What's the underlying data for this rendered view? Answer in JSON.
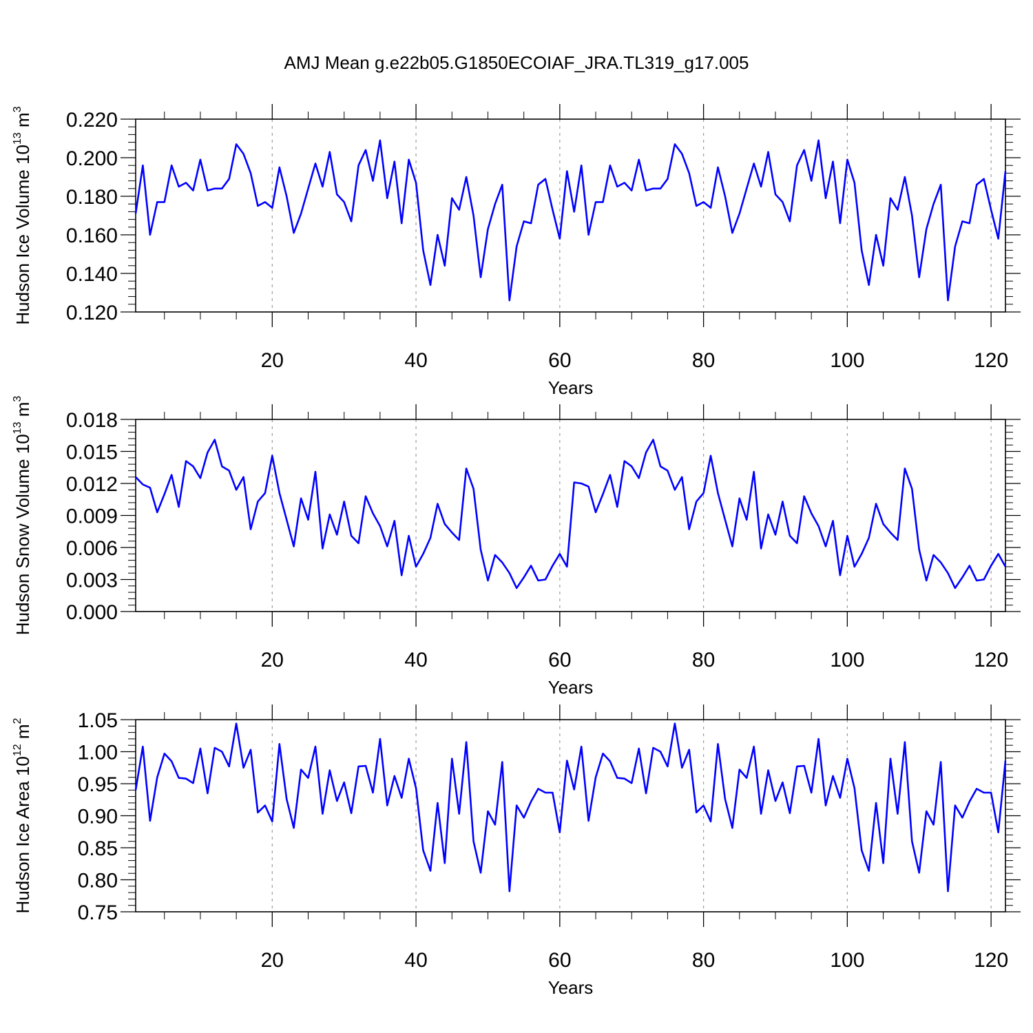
{
  "figure": {
    "title": "AMJ Mean g.e22b05.G1850ECOIAF_JRA.TL319_g17.005"
  },
  "chart_data": [
    {
      "type": "line",
      "title": "AMJ Mean g.e22b05.G1850ECOIAF_JRA.TL319_g17.005",
      "xlabel": "Years",
      "ylabel_prefix": "Hudson Ice Volume 10",
      "ylabel_exp": "13",
      "ylabel_unit": " m",
      "ylabel_unit_exp": "3",
      "xlim": [
        1,
        122
      ],
      "ylim": [
        0.12,
        0.22
      ],
      "xticks": [
        20,
        40,
        60,
        80,
        100,
        120
      ],
      "xtick_labels": [
        "20",
        "40",
        "60",
        "80",
        "100",
        "120"
      ],
      "yticks": [
        0.12,
        0.14,
        0.16,
        0.18,
        0.2,
        0.22
      ],
      "ytick_labels": [
        "0.120",
        "0.140",
        "0.160",
        "0.180",
        "0.200",
        "0.220"
      ],
      "grid": "vertical-dashed",
      "series": [
        {
          "name": "ice volume",
          "color": "#0000ff",
          "x_start": 1,
          "values": [
            0.171,
            0.196,
            0.16,
            0.177,
            0.177,
            0.196,
            0.185,
            0.187,
            0.183,
            0.199,
            0.183,
            0.184,
            0.184,
            0.189,
            0.207,
            0.202,
            0.192,
            0.175,
            0.177,
            0.174,
            0.195,
            0.18,
            0.161,
            0.171,
            0.184,
            0.197,
            0.185,
            0.203,
            0.181,
            0.177,
            0.167,
            0.196,
            0.204,
            0.188,
            0.209,
            0.179,
            0.198,
            0.166,
            0.199,
            0.187,
            0.152,
            0.134,
            0.16,
            0.144,
            0.179,
            0.173,
            0.19,
            0.17,
            0.138,
            0.163,
            0.176,
            0.186,
            0.126,
            0.154,
            0.167,
            0.166,
            0.186,
            0.189,
            0.173,
            0.158,
            0.193,
            0.172,
            0.196,
            0.16,
            0.177,
            0.177,
            0.196,
            0.185,
            0.187,
            0.183,
            0.199,
            0.183,
            0.184,
            0.184,
            0.189,
            0.207,
            0.202,
            0.192,
            0.175,
            0.177,
            0.174,
            0.195,
            0.18,
            0.161,
            0.171,
            0.184,
            0.197,
            0.185,
            0.203,
            0.181,
            0.177,
            0.167,
            0.196,
            0.204,
            0.188,
            0.209,
            0.179,
            0.198,
            0.166,
            0.199,
            0.187,
            0.152,
            0.134,
            0.16,
            0.144,
            0.179,
            0.173,
            0.19,
            0.17,
            0.138,
            0.163,
            0.176,
            0.186,
            0.126,
            0.154,
            0.167,
            0.166,
            0.186,
            0.189,
            0.173,
            0.158,
            0.193
          ]
        }
      ]
    },
    {
      "type": "line",
      "xlabel": "Years",
      "ylabel_prefix": "Hudson Snow Volume 10",
      "ylabel_exp": "13",
      "ylabel_unit": " m",
      "ylabel_unit_exp": "3",
      "xlim": [
        1,
        122
      ],
      "ylim": [
        0.0,
        0.018
      ],
      "xticks": [
        20,
        40,
        60,
        80,
        100,
        120
      ],
      "xtick_labels": [
        "20",
        "40",
        "60",
        "80",
        "100",
        "120"
      ],
      "yticks": [
        0.0,
        0.003,
        0.006,
        0.009,
        0.012,
        0.015,
        0.018
      ],
      "ytick_labels": [
        "0.000",
        "0.003",
        "0.006",
        "0.009",
        "0.012",
        "0.015",
        "0.018"
      ],
      "grid": "vertical-dashed",
      "series": [
        {
          "name": "snow volume",
          "color": "#0000ff",
          "x_start": 1,
          "values": [
            0.0126,
            0.0119,
            0.0116,
            0.0093,
            0.011,
            0.0128,
            0.0098,
            0.0141,
            0.0136,
            0.0125,
            0.0149,
            0.0161,
            0.0136,
            0.0132,
            0.0114,
            0.0126,
            0.0077,
            0.0103,
            0.0111,
            0.0146,
            0.0111,
            0.0086,
            0.0061,
            0.0106,
            0.0086,
            0.0131,
            0.0059,
            0.0091,
            0.0072,
            0.0103,
            0.0071,
            0.0064,
            0.0108,
            0.0092,
            0.008,
            0.0061,
            0.0085,
            0.0034,
            0.0071,
            0.0042,
            0.0054,
            0.0069,
            0.0101,
            0.0082,
            0.0074,
            0.0067,
            0.0134,
            0.0115,
            0.0058,
            0.0029,
            0.0053,
            0.0046,
            0.0036,
            0.0022,
            0.0032,
            0.0043,
            0.0029,
            0.003,
            0.0043,
            0.0054,
            0.0042,
            0.0121,
            0.012,
            0.0117,
            0.0093,
            0.011,
            0.0128,
            0.0098,
            0.0141,
            0.0136,
            0.0125,
            0.0149,
            0.0161,
            0.0136,
            0.0132,
            0.0114,
            0.0126,
            0.0077,
            0.0103,
            0.0111,
            0.0146,
            0.0111,
            0.0086,
            0.0061,
            0.0106,
            0.0086,
            0.0131,
            0.0059,
            0.0091,
            0.0072,
            0.0103,
            0.0071,
            0.0064,
            0.0108,
            0.0092,
            0.008,
            0.0061,
            0.0085,
            0.0034,
            0.0071,
            0.0042,
            0.0054,
            0.0069,
            0.0101,
            0.0082,
            0.0074,
            0.0067,
            0.0134,
            0.0115,
            0.0058,
            0.0029,
            0.0053,
            0.0046,
            0.0036,
            0.0022,
            0.0032,
            0.0043,
            0.0029,
            0.003,
            0.0043,
            0.0054,
            0.0042
          ]
        }
      ]
    },
    {
      "type": "line",
      "xlabel": "Years",
      "ylabel_prefix": "Hudson Ice Area 10",
      "ylabel_exp": "12",
      "ylabel_unit": " m",
      "ylabel_unit_exp": "2",
      "xlim": [
        1,
        122
      ],
      "ylim": [
        0.75,
        1.05
      ],
      "xticks": [
        20,
        40,
        60,
        80,
        100,
        120
      ],
      "xtick_labels": [
        "20",
        "40",
        "60",
        "80",
        "100",
        "120"
      ],
      "yticks": [
        0.75,
        0.8,
        0.85,
        0.9,
        0.95,
        1.0,
        1.05
      ],
      "ytick_labels": [
        "0.75",
        "0.80",
        "0.85",
        "0.90",
        "0.95",
        "1.00",
        "1.05"
      ],
      "grid": "vertical-dashed",
      "series": [
        {
          "name": "ice area",
          "color": "#0000ff",
          "x_start": 1,
          "values": [
            0.94,
            1.008,
            0.892,
            0.96,
            0.997,
            0.985,
            0.959,
            0.958,
            0.951,
            1.005,
            0.935,
            1.006,
            1.0,
            0.977,
            1.044,
            0.975,
            1.003,
            0.905,
            0.916,
            0.891,
            1.012,
            0.926,
            0.881,
            0.972,
            0.959,
            1.008,
            0.903,
            0.971,
            0.923,
            0.952,
            0.904,
            0.977,
            0.978,
            0.936,
            1.02,
            0.916,
            0.962,
            0.928,
            0.989,
            0.943,
            0.846,
            0.814,
            0.92,
            0.826,
            0.989,
            0.903,
            1.015,
            0.86,
            0.811,
            0.907,
            0.886,
            0.984,
            0.782,
            0.916,
            0.897,
            0.922,
            0.942,
            0.936,
            0.936,
            0.874,
            0.986,
            0.941,
            1.008,
            0.892,
            0.96,
            0.997,
            0.985,
            0.959,
            0.958,
            0.951,
            1.005,
            0.935,
            1.006,
            1.0,
            0.977,
            1.044,
            0.975,
            1.003,
            0.905,
            0.916,
            0.891,
            1.012,
            0.926,
            0.881,
            0.972,
            0.959,
            1.008,
            0.903,
            0.971,
            0.923,
            0.952,
            0.904,
            0.977,
            0.978,
            0.936,
            1.02,
            0.916,
            0.962,
            0.928,
            0.989,
            0.943,
            0.846,
            0.814,
            0.92,
            0.826,
            0.989,
            0.903,
            1.015,
            0.86,
            0.811,
            0.907,
            0.886,
            0.984,
            0.782,
            0.916,
            0.897,
            0.922,
            0.942,
            0.936,
            0.936,
            0.874,
            0.986
          ]
        }
      ]
    }
  ]
}
